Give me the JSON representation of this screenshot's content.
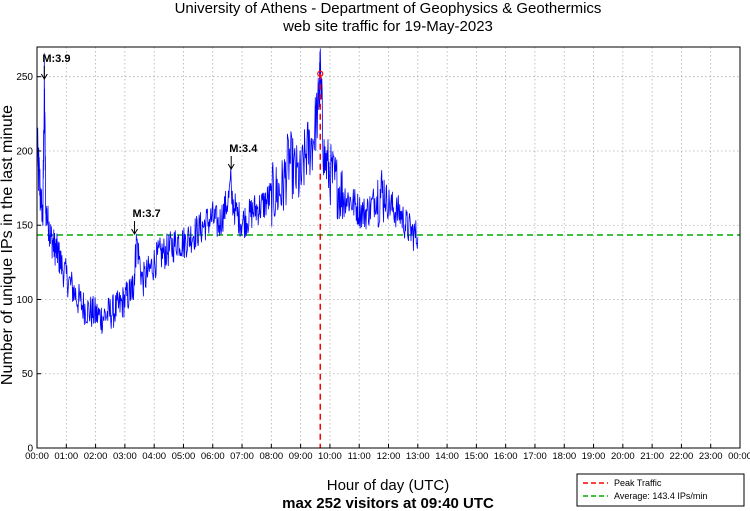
{
  "chart_data": {
    "type": "line",
    "title_line1": "University of Athens - Department of Geophysics & Geothermics",
    "title_line2": "web site traffic for 19-May-2023",
    "xlabel": "Hour of day (UTC)",
    "subtitle": "max 252 visitors at 09:40 UTC",
    "ylabel": "Number of unique IPs in the last minute",
    "xlim": [
      0,
      24
    ],
    "ylim": [
      0,
      270
    ],
    "grid": true,
    "x_ticks": [
      "00:00",
      "01:00",
      "02:00",
      "03:00",
      "04:00",
      "05:00",
      "06:00",
      "07:00",
      "08:00",
      "09:00",
      "10:00",
      "11:00",
      "12:00",
      "13:00",
      "14:00",
      "15:00",
      "16:00",
      "17:00",
      "18:00",
      "19:00",
      "20:00",
      "21:00",
      "22:00",
      "23:00",
      "00:00"
    ],
    "y_ticks": [
      0,
      50,
      100,
      150,
      200,
      250
    ],
    "series": [
      {
        "name": "traffic",
        "color": "#0000ff",
        "x": [
          0.0,
          0.1,
          0.2,
          0.25,
          0.3,
          0.4,
          0.5,
          0.6,
          0.7,
          0.8,
          1.0,
          1.2,
          1.4,
          1.6,
          1.8,
          2.0,
          2.2,
          2.4,
          2.6,
          2.8,
          3.0,
          3.2,
          3.3,
          3.4,
          3.6,
          3.8,
          4.0,
          4.2,
          4.4,
          4.6,
          4.8,
          5.0,
          5.2,
          5.4,
          5.6,
          5.8,
          6.0,
          6.2,
          6.4,
          6.6,
          6.8,
          7.0,
          7.2,
          7.4,
          7.6,
          7.8,
          8.0,
          8.2,
          8.4,
          8.6,
          8.8,
          9.0,
          9.2,
          9.4,
          9.6,
          9.67,
          9.8,
          10.0,
          10.2,
          10.4,
          10.6,
          10.8,
          11.0,
          11.2,
          11.4,
          11.6,
          11.8,
          12.0,
          12.2,
          12.4,
          12.6,
          12.8,
          13.0
        ],
        "values": [
          200,
          175,
          155,
          245,
          160,
          150,
          140,
          135,
          132,
          125,
          115,
          108,
          100,
          95,
          92,
          90,
          88,
          90,
          92,
          95,
          100,
          105,
          110,
          140,
          112,
          118,
          125,
          130,
          132,
          135,
          140,
          138,
          142,
          145,
          148,
          152,
          155,
          150,
          160,
          172,
          158,
          152,
          155,
          160,
          162,
          165,
          170,
          172,
          175,
          195,
          185,
          180,
          200,
          205,
          230,
          252,
          195,
          185,
          178,
          172,
          168,
          165,
          160,
          158,
          162,
          170,
          172,
          165,
          160,
          158,
          150,
          145,
          142
        ]
      }
    ],
    "peak": {
      "x": 9.67,
      "y": 252
    },
    "average": 143.4,
    "annotations": [
      {
        "label": "M:3.9",
        "x": 0.25
      },
      {
        "label": "M:3.7",
        "x": 3.33
      },
      {
        "label": "M:3.4",
        "x": 6.63
      }
    ],
    "legend": {
      "position": "bottom-right",
      "items": [
        {
          "label": "Peak Traffic",
          "color": "#ff0000"
        },
        {
          "label": "Average: 143.4 IPs/min",
          "color": "#00aa00"
        }
      ]
    }
  }
}
